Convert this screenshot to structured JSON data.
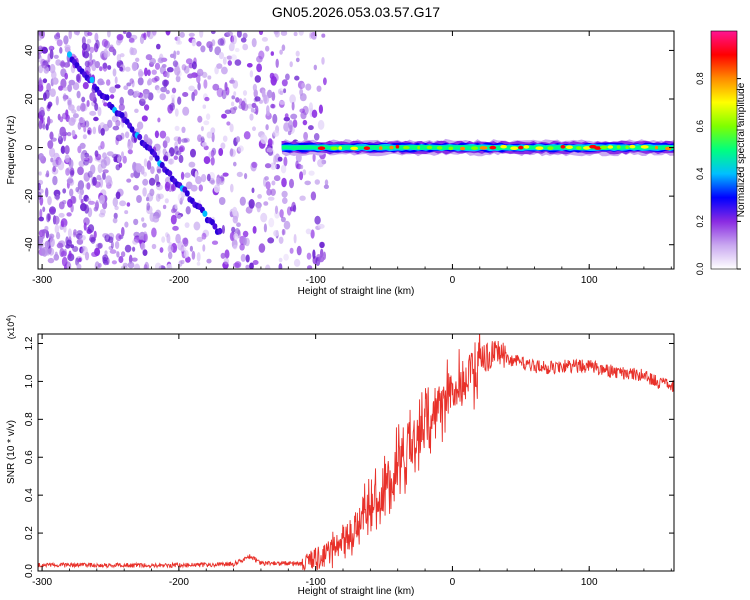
{
  "figure_title": "GN05.2026.053.03.57.G17",
  "chart_data": [
    {
      "type": "heatmap",
      "title": "GN05.2026.053.03.57.G17",
      "xlabel": "Height of straight line (km)",
      "ylabel": "Frequency (Hz)",
      "xlim": [
        -303,
        162
      ],
      "ylim": [
        -50,
        48
      ],
      "xticks": [
        -300,
        -200,
        -100,
        0,
        100
      ],
      "yticks": [
        -40,
        -20,
        0,
        20,
        40
      ],
      "noise_cutoff_x": -92,
      "carrier_start_x": -125,
      "carrier_frequency": 0,
      "drift_line": {
        "start": [
          -280,
          38
        ],
        "end": [
          -170,
          -35
        ]
      },
      "colorbar": {
        "label": "Normalized spectral amplitude",
        "range": [
          0,
          1
        ],
        "ticks": [
          "0.0",
          "0.2",
          "0.4",
          "0.6",
          "0.8"
        ],
        "tick_values": [
          0.0,
          0.2,
          0.4,
          0.6,
          0.8
        ],
        "stops": [
          "#ffffff",
          "#c9a8f0",
          "#8a2be2",
          "#0000ff",
          "#00bfff",
          "#00ff7f",
          "#7fff00",
          "#ffff00",
          "#ff8c00",
          "#ff0000",
          "#ff1493"
        ]
      }
    },
    {
      "type": "line",
      "xlabel": "Height of straight line (km)",
      "ylabel": "SNR (10 * v/v)",
      "y_multiplier": "(x10",
      "y_multiplier_exp": "4",
      "y_multiplier_close": ")",
      "xlim": [
        -303,
        162
      ],
      "ylim": [
        0,
        1.25
      ],
      "xticks": [
        -300,
        -200,
        -100,
        0,
        100
      ],
      "yticks": [
        "0.0",
        "0.2",
        "0.4",
        "0.6",
        "0.8",
        "1.0",
        "1.2"
      ],
      "ytick_values": [
        0.0,
        0.2,
        0.4,
        0.6,
        0.8,
        1.0,
        1.2
      ],
      "color": "#e8312a",
      "x": [
        -303,
        -250,
        -200,
        -160,
        -148,
        -140,
        -110,
        -100,
        -90,
        -80,
        -70,
        -60,
        -50,
        -40,
        -30,
        -20,
        -10,
        0,
        10,
        20,
        30,
        40,
        50,
        60,
        70,
        80,
        90,
        100,
        110,
        120,
        130,
        140,
        150,
        162
      ],
      "values": [
        0.03,
        0.03,
        0.03,
        0.035,
        0.08,
        0.04,
        0.04,
        0.06,
        0.1,
        0.15,
        0.25,
        0.35,
        0.45,
        0.55,
        0.65,
        0.75,
        0.85,
        0.95,
        1.02,
        1.1,
        1.15,
        1.12,
        1.1,
        1.08,
        1.07,
        1.08,
        1.08,
        1.08,
        1.06,
        1.05,
        1.04,
        1.03,
        1.0,
        0.97
      ]
    }
  ]
}
